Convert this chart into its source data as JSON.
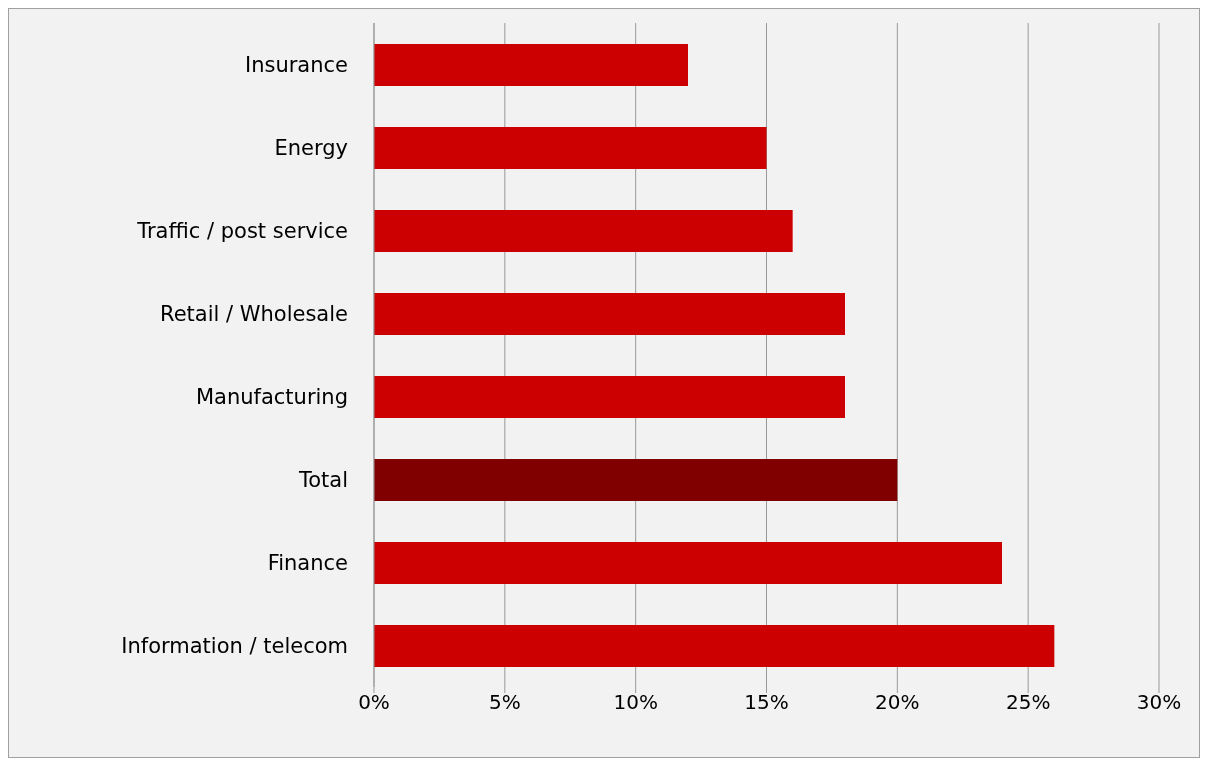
{
  "chart_data": {
    "type": "bar",
    "orientation": "horizontal",
    "categories": [
      "Insurance",
      "Energy",
      "Traffic / post service",
      "Retail / Wholesale",
      "Manufacturing",
      "Total",
      "Finance",
      "Information / telecom"
    ],
    "values": [
      12,
      15,
      16,
      18,
      18,
      20,
      24,
      26
    ],
    "colors": [
      "#cc0000",
      "#cc0000",
      "#cc0000",
      "#cc0000",
      "#cc0000",
      "#800000",
      "#cc0000",
      "#cc0000"
    ],
    "xlim": [
      0,
      30
    ],
    "xticks": [
      {
        "value": 0,
        "label": "0%"
      },
      {
        "value": 5,
        "label": "5%"
      },
      {
        "value": 10,
        "label": "10%"
      },
      {
        "value": 15,
        "label": "15%"
      },
      {
        "value": 20,
        "label": "20%"
      },
      {
        "value": 25,
        "label": "25%"
      },
      {
        "value": 30,
        "label": "30%"
      }
    ],
    "grid": "x",
    "legend": false
  }
}
